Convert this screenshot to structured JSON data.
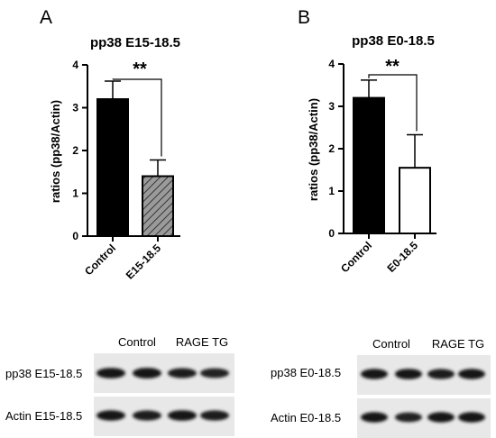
{
  "panels": [
    {
      "letter": "A"
    },
    {
      "letter": "B"
    }
  ],
  "chart_data": [
    {
      "type": "bar",
      "title": "pp38 E15-18.5",
      "ylabel": "ratios (pp38/Actin)",
      "xlabel": "",
      "categories": [
        "Control",
        "E15-18.5"
      ],
      "values": [
        3.2,
        1.4
      ],
      "error": [
        0.42,
        0.38
      ],
      "fills": [
        "solid-black",
        "gray-hatched"
      ],
      "ylim": [
        0,
        4
      ],
      "yticks": [
        "0",
        "1",
        "2",
        "3",
        "4"
      ],
      "significance": "**",
      "grid": false
    },
    {
      "type": "bar",
      "title": "pp38 E0-18.5",
      "ylabel": "ratios (pp38/Actin)",
      "xlabel": "",
      "categories": [
        "Control",
        "E0-18.5"
      ],
      "values": [
        3.2,
        1.55
      ],
      "error": [
        0.42,
        0.78
      ],
      "fills": [
        "solid-black",
        "white"
      ],
      "ylim": [
        0,
        4
      ],
      "yticks": [
        "0",
        "1",
        "2",
        "3",
        "4"
      ],
      "significance": "**",
      "grid": false
    }
  ],
  "blots": [
    {
      "group_labels": [
        "Control",
        "RAGE TG"
      ],
      "rows": [
        {
          "label": "pp38 E15-18.5",
          "band_intensity": [
            0.9,
            0.95,
            0.75,
            0.7
          ]
        },
        {
          "label": "Actin E15-18.5",
          "band_intensity": [
            0.85,
            0.8,
            0.9,
            0.8
          ]
        }
      ]
    },
    {
      "group_labels": [
        "Control",
        "RAGE TG"
      ],
      "rows": [
        {
          "label": "pp38 E0-18.5",
          "band_intensity": [
            0.85,
            0.9,
            0.8,
            0.85
          ]
        },
        {
          "label": "Actin E0-18.5",
          "band_intensity": [
            0.85,
            0.7,
            0.85,
            0.85
          ]
        }
      ]
    }
  ],
  "colors": {
    "bar_black": "#000000",
    "hatch_gray": "#8a8a8a",
    "blot_bg": "#e6e6e6",
    "band": "#1a1a1a"
  }
}
